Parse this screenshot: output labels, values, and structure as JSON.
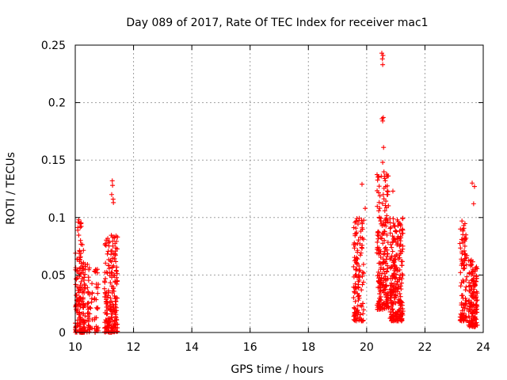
{
  "chart_data": {
    "type": "scatter",
    "title": "Day 089 of 2017, Rate Of TEC Index for receiver mac1",
    "xlabel": "GPS time / hours",
    "ylabel": "ROTI / TECUs",
    "xlim": [
      10,
      24
    ],
    "ylim": [
      0,
      0.25
    ],
    "x_ticks": [
      10,
      12,
      14,
      16,
      18,
      20,
      22,
      24
    ],
    "x_tick_labels": [
      "10",
      "12",
      "14",
      "16",
      "18",
      "20",
      "22",
      "24"
    ],
    "y_ticks": [
      0,
      0.05,
      0.1,
      0.15,
      0.2,
      0.25
    ],
    "y_tick_labels": [
      "0",
      "0.05",
      "0.1",
      "0.15",
      "0.2",
      "0.25"
    ],
    "grid": true,
    "marker": "+",
    "marker_color": "#ff0000",
    "series": [
      {
        "name": "ROTI",
        "clusters": [
          {
            "x_range": [
              10.0,
              10.35
            ],
            "y_range": [
              0.0,
              0.06
            ],
            "count": 140
          },
          {
            "x_range": [
              10.0,
              10.3
            ],
            "y_range": [
              0.06,
              0.1
            ],
            "count": 25
          },
          {
            "x_range": [
              10.4,
              10.6
            ],
            "y_range": [
              0.0,
              0.06
            ],
            "count": 40
          },
          {
            "x_range": [
              10.65,
              10.8
            ],
            "y_range": [
              0.0,
              0.055
            ],
            "count": 30
          },
          {
            "x_range": [
              11.0,
              11.45
            ],
            "y_range": [
              0.0,
              0.085
            ],
            "count": 200
          },
          {
            "x_range": [
              19.55,
              19.9
            ],
            "y_range": [
              0.01,
              0.1
            ],
            "count": 130
          },
          {
            "x_range": [
              20.35,
              20.75
            ],
            "y_range": [
              0.02,
              0.14
            ],
            "count": 200
          },
          {
            "x_range": [
              20.8,
              21.25
            ],
            "y_range": [
              0.01,
              0.1
            ],
            "count": 240
          },
          {
            "x_range": [
              23.2,
              23.45
            ],
            "y_range": [
              0.01,
              0.095
            ],
            "count": 90
          },
          {
            "x_range": [
              23.5,
              23.8
            ],
            "y_range": [
              0.005,
              0.065
            ],
            "count": 140
          }
        ],
        "points": [
          [
            10.12,
            0.098
          ],
          [
            10.16,
            0.095
          ],
          [
            10.18,
            0.08
          ],
          [
            11.27,
            0.132
          ],
          [
            11.28,
            0.128
          ],
          [
            11.25,
            0.12
          ],
          [
            11.3,
            0.116
          ],
          [
            11.31,
            0.113
          ],
          [
            11.4,
            0.084
          ],
          [
            11.45,
            0.083
          ],
          [
            19.84,
            0.129
          ],
          [
            19.95,
            0.108
          ],
          [
            20.52,
            0.243
          ],
          [
            20.56,
            0.241
          ],
          [
            20.54,
            0.238
          ],
          [
            20.55,
            0.233
          ],
          [
            20.57,
            0.187
          ],
          [
            20.53,
            0.186
          ],
          [
            20.55,
            0.184
          ],
          [
            20.58,
            0.161
          ],
          [
            20.55,
            0.148
          ],
          [
            20.5,
            0.136
          ],
          [
            20.62,
            0.134
          ],
          [
            20.57,
            0.12
          ],
          [
            20.65,
            0.127
          ],
          [
            20.7,
            0.12
          ],
          [
            20.9,
            0.123
          ],
          [
            23.62,
            0.13
          ],
          [
            23.7,
            0.127
          ],
          [
            23.67,
            0.112
          ],
          [
            23.27,
            0.097
          ],
          [
            23.33,
            0.093
          ]
        ]
      }
    ]
  }
}
